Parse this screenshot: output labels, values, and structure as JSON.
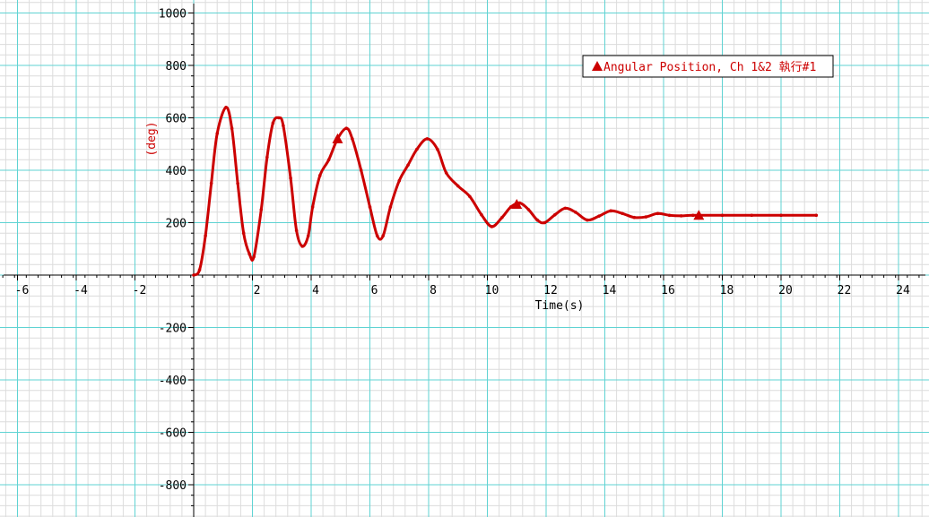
{
  "chart_data": {
    "type": "line",
    "title": "",
    "xlabel": "Time(s)",
    "ylabel": "(deg)",
    "xlim": [
      -6.5,
      25
    ],
    "ylim": [
      -900,
      1000
    ],
    "x_ticks": [
      -6,
      -4,
      -2,
      2,
      4,
      6,
      8,
      10,
      12,
      14,
      16,
      18,
      20,
      22,
      24
    ],
    "x_tick_labels": [
      "-6",
      "-4",
      "-2",
      "2",
      "4",
      "6",
      "8",
      "10",
      "12",
      "14",
      "16",
      "18",
      "20",
      "22",
      "24"
    ],
    "y_ticks": [
      1000,
      800,
      600,
      400,
      200,
      -200,
      -400,
      -600,
      -800
    ],
    "y_tick_labels": [
      "1000",
      "800",
      "600",
      "400",
      "200",
      "-200",
      "-400",
      "-600",
      "-800"
    ],
    "grid": true,
    "legend_position": "top-right",
    "colors": {
      "series": "#cc0000",
      "major_grid": "#5fd3d3",
      "minor_grid": "#dcdcdc",
      "axis": "#000000"
    },
    "series": [
      {
        "name": "Angular Position, Ch 1&2 執行#1",
        "marker": "triangle",
        "marker_x": [
          4.9,
          11.0,
          17.2
        ],
        "x": [
          0,
          0.2,
          0.4,
          0.6,
          0.8,
          1.1,
          1.3,
          1.5,
          1.7,
          1.9,
          2.05,
          2.3,
          2.5,
          2.7,
          2.9,
          3.05,
          3.3,
          3.5,
          3.7,
          3.9,
          4.05,
          4.3,
          4.6,
          4.9,
          5.2,
          5.4,
          5.7,
          6.0,
          6.25,
          6.45,
          6.7,
          7.0,
          7.3,
          7.6,
          7.95,
          8.3,
          8.6,
          9.0,
          9.4,
          9.8,
          10.15,
          10.5,
          10.8,
          11.1,
          11.4,
          11.7,
          11.95,
          12.3,
          12.65,
          13.0,
          13.4,
          13.8,
          14.2,
          14.6,
          15.0,
          15.4,
          15.8,
          16.2,
          16.6,
          17.0,
          18.0,
          19.0,
          20.0,
          21.2
        ],
        "y": [
          0,
          20,
          150,
          350,
          540,
          640,
          560,
          350,
          160,
          80,
          70,
          250,
          450,
          580,
          600,
          570,
          370,
          170,
          110,
          150,
          260,
          380,
          440,
          520,
          560,
          520,
          400,
          260,
          150,
          150,
          260,
          360,
          420,
          480,
          520,
          480,
          390,
          340,
          300,
          230,
          185,
          220,
          260,
          275,
          250,
          210,
          200,
          230,
          255,
          240,
          210,
          225,
          245,
          235,
          220,
          222,
          235,
          228,
          226,
          228,
          228,
          228,
          228,
          228
        ]
      }
    ]
  }
}
